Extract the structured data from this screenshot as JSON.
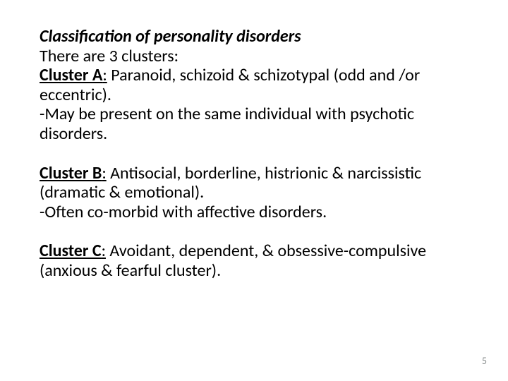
{
  "slide": {
    "title": "Classification of personality disorders",
    "line_intro": "There are 3 clusters:",
    "clusterA": {
      "label_bold": "Cluster A",
      "label_ul": ":",
      "rest": " Paranoid, schizoid & schizotypal (odd and /or eccentric).",
      "note": "-May be present on the same individual with psychotic disorders."
    },
    "clusterB": {
      "label_bold": "Cluster B",
      "label_ul": ":",
      "rest": " Antisocial, borderline, histrionic & narcissistic (dramatic & emotional).",
      "note": "-Often co-morbid with affective disorders."
    },
    "clusterC": {
      "label_bold": "Cluster C",
      "label_ul": ":",
      "rest": " Avoidant, dependent, & obsessive-compulsive (anxious & fearful cluster)."
    },
    "pagenum": "5"
  },
  "style": {
    "background_color": "#ffffff",
    "text_color": "#000000",
    "pagenum_color": "#8a8f8f",
    "font_family": "Calibri",
    "body_fontsize_pt": 18,
    "title_fontsize_pt": 18
  }
}
